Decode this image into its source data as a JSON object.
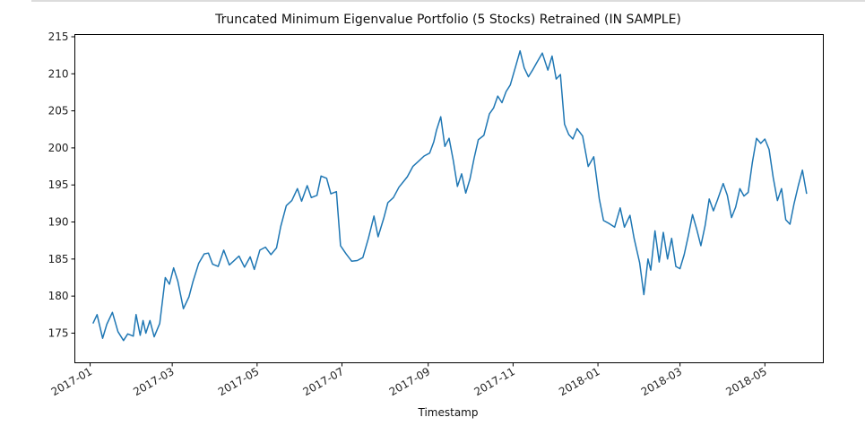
{
  "colors": {
    "line": "#1f77b4",
    "axes": "#000000",
    "text": "#222222",
    "frame_top": "#dcdcdc"
  },
  "chart_data": {
    "type": "line",
    "title": "Truncated Minimum Eigenvalue Portfolio (5 Stocks) Retrained (IN SAMPLE)",
    "xlabel": "Timestamp",
    "ylabel": "",
    "grid": false,
    "legend": false,
    "xlim": [
      "2016-12-21",
      "2018-06-12"
    ],
    "ylim": [
      171,
      215.3
    ],
    "x_tick_labels": [
      "2017-01",
      "2017-03",
      "2017-05",
      "2017-07",
      "2017-09",
      "2017-11",
      "2018-01",
      "2018-03",
      "2018-05"
    ],
    "y_tick_labels": [
      "175",
      "180",
      "185",
      "190",
      "195",
      "200",
      "205",
      "210",
      "215"
    ],
    "series": [
      {
        "x": [
          "2017-01-03",
          "2017-01-06",
          "2017-01-10",
          "2017-01-13",
          "2017-01-17",
          "2017-01-21",
          "2017-01-25",
          "2017-01-28",
          "2017-02-01",
          "2017-02-03",
          "2017-02-06",
          "2017-02-08",
          "2017-02-10",
          "2017-02-13",
          "2017-02-16",
          "2017-02-20",
          "2017-02-24",
          "2017-02-27",
          "2017-03-02",
          "2017-03-05",
          "2017-03-09",
          "2017-03-13",
          "2017-03-16",
          "2017-03-20",
          "2017-03-24",
          "2017-03-27",
          "2017-03-30",
          "2017-04-03",
          "2017-04-07",
          "2017-04-11",
          "2017-04-14",
          "2017-04-18",
          "2017-04-22",
          "2017-04-26",
          "2017-04-29",
          "2017-05-03",
          "2017-05-07",
          "2017-05-11",
          "2017-05-15",
          "2017-05-18",
          "2017-05-22",
          "2017-05-26",
          "2017-05-30",
          "2017-06-02",
          "2017-06-06",
          "2017-06-09",
          "2017-06-13",
          "2017-06-16",
          "2017-06-20",
          "2017-06-23",
          "2017-06-27",
          "2017-06-30",
          "2017-07-04",
          "2017-07-08",
          "2017-07-12",
          "2017-07-16",
          "2017-07-20",
          "2017-07-24",
          "2017-07-27",
          "2017-07-31",
          "2017-08-03",
          "2017-08-07",
          "2017-08-11",
          "2017-08-14",
          "2017-08-17",
          "2017-08-21",
          "2017-08-25",
          "2017-08-29",
          "2017-09-02",
          "2017-09-05",
          "2017-09-07",
          "2017-09-10",
          "2017-09-13",
          "2017-09-16",
          "2017-09-19",
          "2017-09-22",
          "2017-09-25",
          "2017-09-28",
          "2017-10-01",
          "2017-10-04",
          "2017-10-07",
          "2017-10-11",
          "2017-10-15",
          "2017-10-18",
          "2017-10-21",
          "2017-10-24",
          "2017-10-27",
          "2017-10-30",
          "2017-11-03",
          "2017-11-06",
          "2017-11-09",
          "2017-11-12",
          "2017-11-15",
          "2017-11-18",
          "2017-11-22",
          "2017-11-26",
          "2017-11-29",
          "2017-12-02",
          "2017-12-05",
          "2017-12-08",
          "2017-12-11",
          "2017-12-14",
          "2017-12-17",
          "2017-12-21",
          "2017-12-25",
          "2017-12-29",
          "2018-01-02",
          "2018-01-05",
          "2018-01-09",
          "2018-01-13",
          "2018-01-17",
          "2018-01-20",
          "2018-01-24",
          "2018-01-27",
          "2018-01-31",
          "2018-02-03",
          "2018-02-06",
          "2018-02-08",
          "2018-02-11",
          "2018-02-14",
          "2018-02-17",
          "2018-02-20",
          "2018-02-23",
          "2018-02-26",
          "2018-03-01",
          "2018-03-04",
          "2018-03-07",
          "2018-03-10",
          "2018-03-13",
          "2018-03-16",
          "2018-03-19",
          "2018-03-22",
          "2018-03-25",
          "2018-03-28",
          "2018-04-01",
          "2018-04-04",
          "2018-04-07",
          "2018-04-10",
          "2018-04-13",
          "2018-04-16",
          "2018-04-19",
          "2018-04-22",
          "2018-04-25",
          "2018-04-28",
          "2018-05-01",
          "2018-05-04",
          "2018-05-07",
          "2018-05-10",
          "2018-05-13",
          "2018-05-16",
          "2018-05-19",
          "2018-05-22",
          "2018-05-25",
          "2018-05-28",
          "2018-05-31"
        ],
        "y": [
          176.3,
          177.5,
          174.3,
          176.2,
          177.8,
          175.2,
          174.0,
          174.9,
          174.6,
          177.5,
          174.7,
          176.7,
          175.0,
          176.7,
          174.5,
          176.3,
          182.5,
          181.6,
          183.8,
          182.0,
          178.3,
          179.9,
          182.0,
          184.4,
          185.7,
          185.8,
          184.3,
          184.0,
          186.2,
          184.2,
          184.7,
          185.4,
          183.9,
          185.3,
          183.6,
          186.2,
          186.6,
          185.6,
          186.5,
          189.4,
          192.2,
          192.9,
          194.5,
          192.8,
          194.9,
          193.3,
          193.6,
          196.2,
          195.9,
          193.8,
          194.1,
          186.8,
          185.7,
          184.7,
          184.8,
          185.2,
          187.8,
          190.8,
          188.0,
          190.5,
          192.6,
          193.3,
          194.7,
          195.4,
          196.1,
          197.5,
          198.2,
          198.9,
          199.3,
          200.8,
          202.4,
          204.2,
          200.2,
          201.3,
          198.3,
          194.8,
          196.5,
          193.9,
          195.8,
          198.6,
          201.1,
          201.7,
          204.6,
          205.4,
          207.0,
          206.1,
          207.6,
          208.5,
          211.1,
          213.1,
          210.8,
          209.6,
          210.5,
          211.5,
          212.8,
          210.5,
          212.4,
          209.3,
          209.9,
          203.2,
          201.8,
          201.2,
          202.6,
          201.6,
          197.5,
          198.8,
          193.1,
          190.2,
          189.8,
          189.3,
          191.9,
          189.3,
          190.9,
          187.8,
          184.5,
          180.2,
          185.0,
          183.5,
          188.8,
          184.6,
          188.6,
          185.0,
          187.8,
          184.0,
          183.7,
          185.6,
          188.2,
          191.0,
          189.0,
          186.8,
          189.5,
          193.1,
          191.5,
          193.0,
          195.2,
          193.6,
          190.6,
          192.0,
          194.5,
          193.5,
          194.0,
          198.0,
          201.3,
          200.6,
          201.2,
          199.8,
          196.0,
          192.9,
          194.5,
          190.3,
          189.7,
          192.5,
          194.9,
          197.0,
          193.8
        ]
      }
    ]
  }
}
